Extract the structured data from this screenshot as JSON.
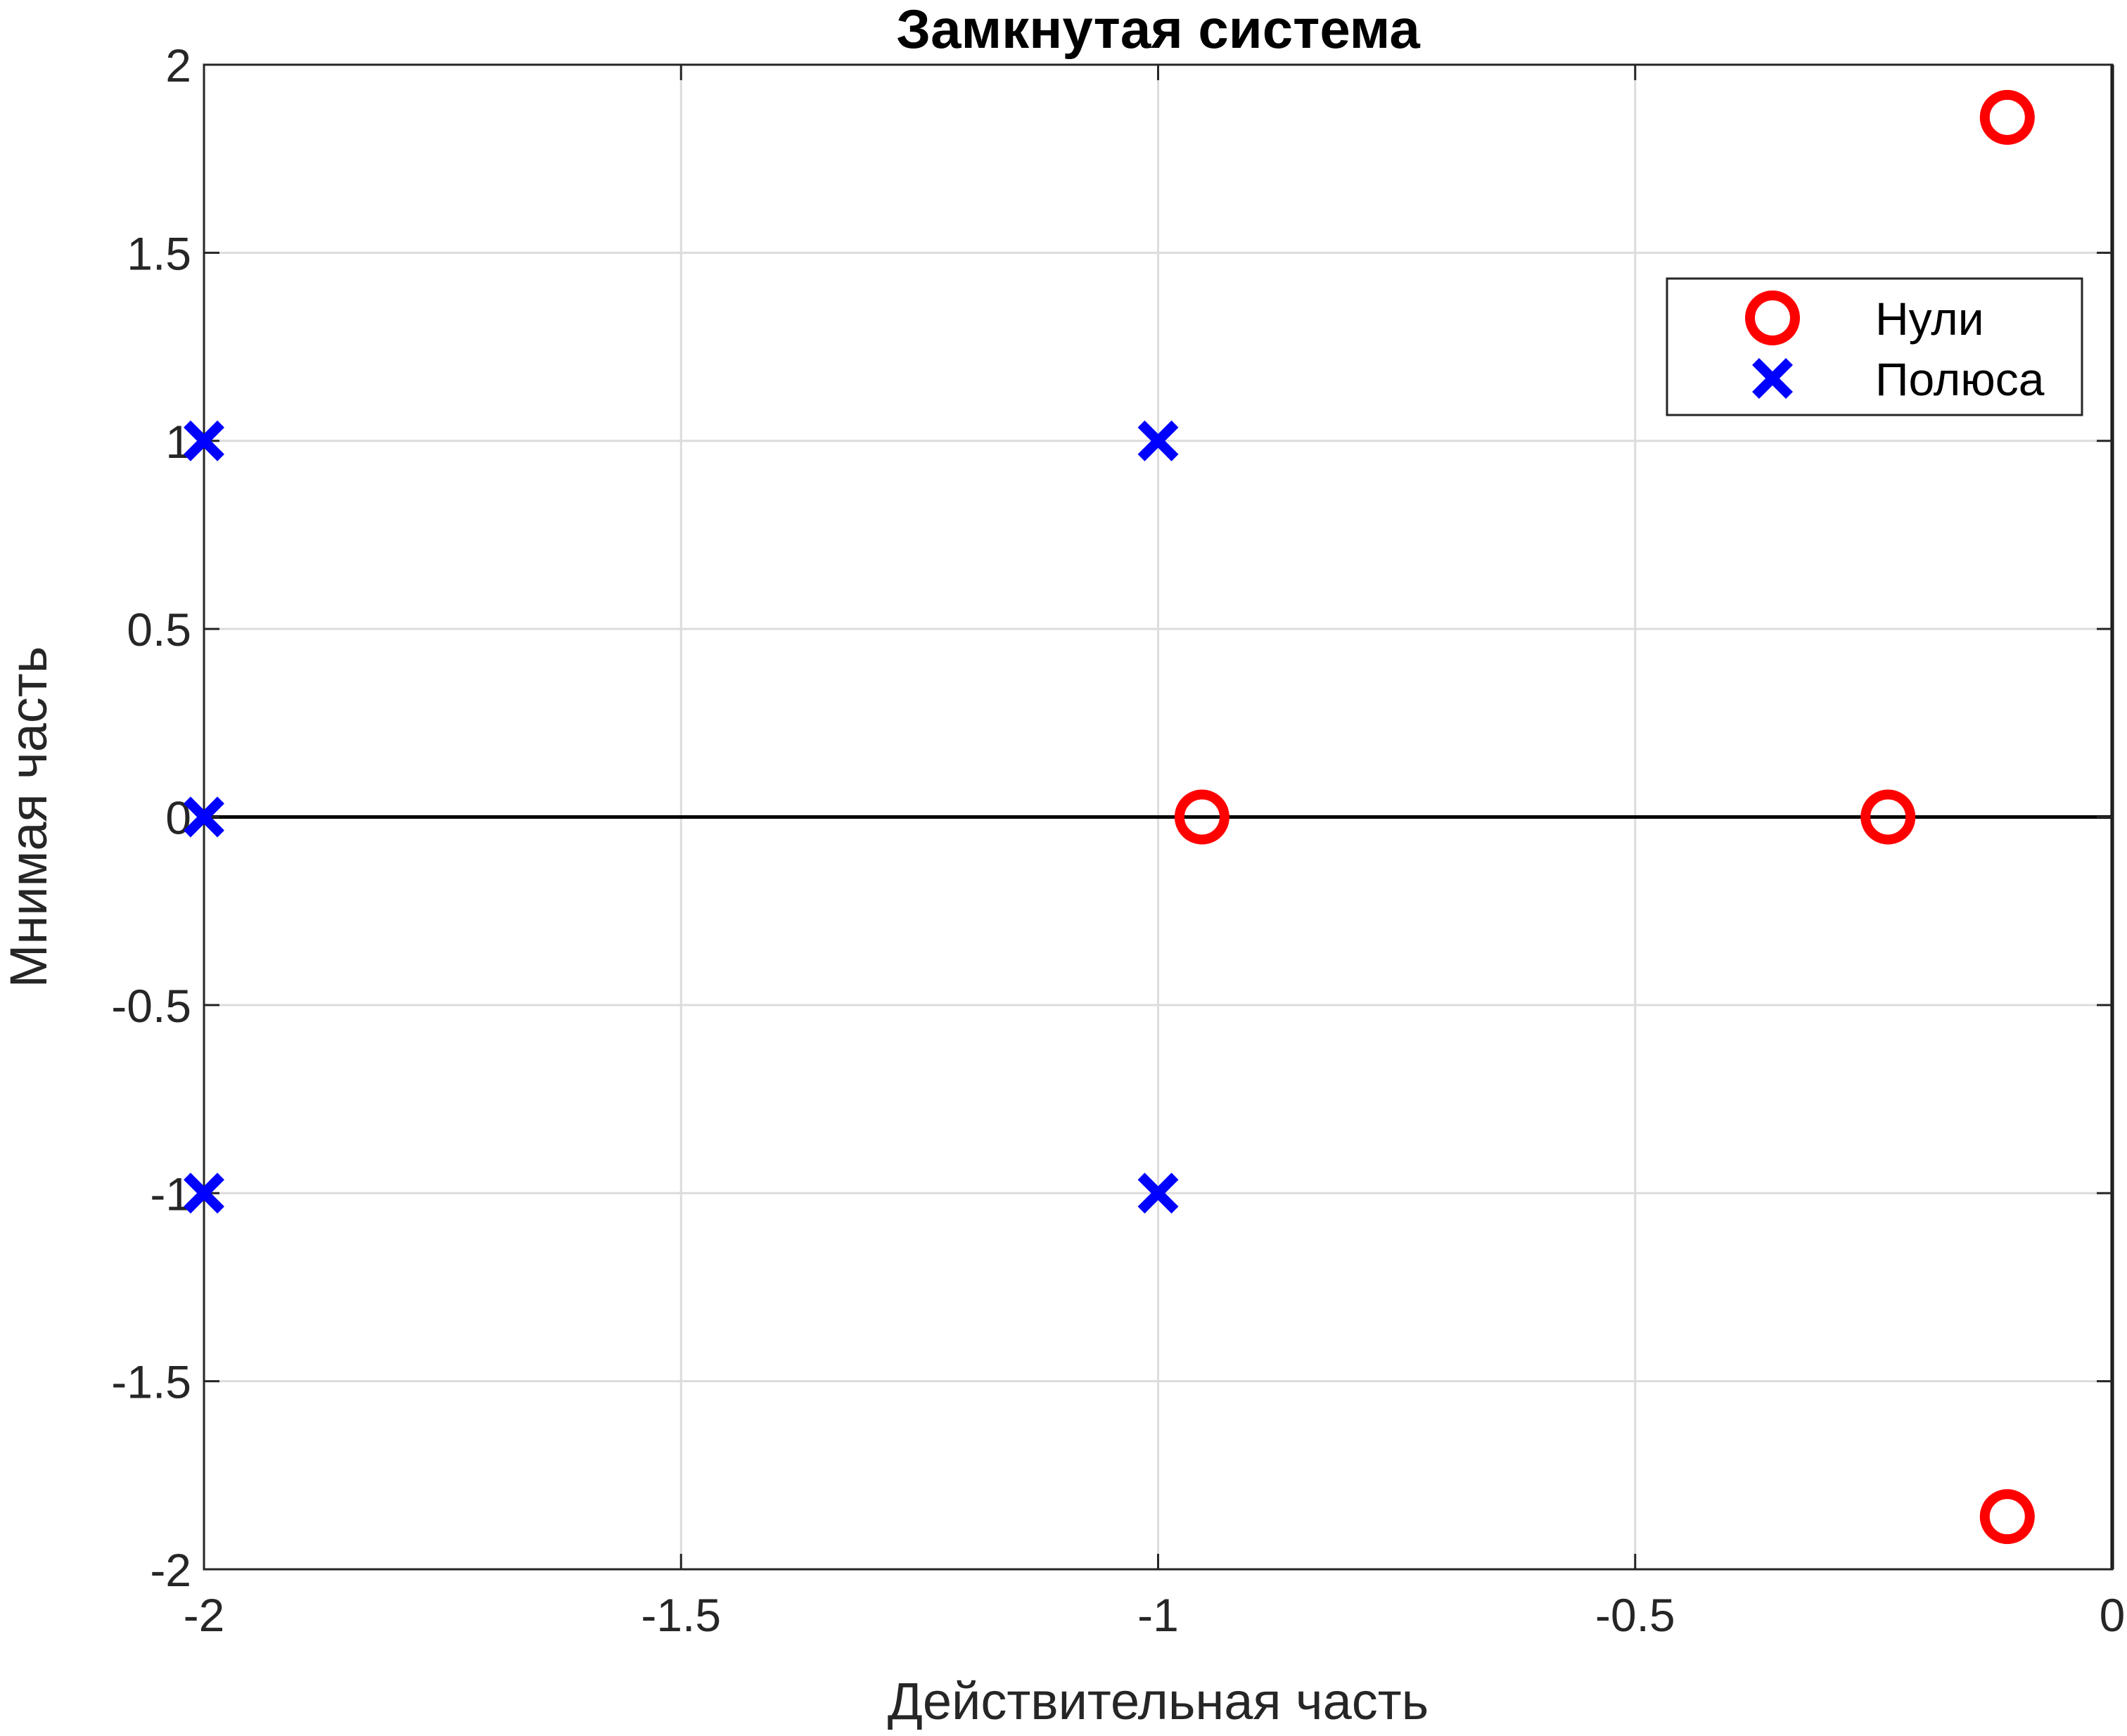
{
  "chart_data": {
    "type": "scatter",
    "title": "Замкнутая система",
    "xlabel": "Действительная часть",
    "ylabel": "Мнимая часть",
    "xlim": [
      -2,
      0
    ],
    "ylim": [
      -2,
      2
    ],
    "grid": true,
    "legend_position": "top-right",
    "x_ticks": [
      "-2",
      "-1.5",
      "-1",
      "-0.5",
      "0"
    ],
    "x_tick_values": [
      -2,
      -1.5,
      -1,
      -0.5,
      0
    ],
    "y_ticks": [
      "-2",
      "-1.5",
      "-1",
      "-0.5",
      "0",
      "0.5",
      "1",
      "1.5",
      "2"
    ],
    "y_tick_values": [
      -2,
      -1.5,
      -1,
      -0.5,
      0,
      0.5,
      1,
      1.5,
      2
    ],
    "series": [
      {
        "name": "Нули",
        "marker": "circle",
        "color": "#ff0000",
        "points": [
          {
            "x": -0.11,
            "y": 1.86
          },
          {
            "x": -0.954,
            "y": 0
          },
          {
            "x": -0.235,
            "y": 0
          },
          {
            "x": -0.11,
            "y": -1.86
          }
        ]
      },
      {
        "name": "Полюса",
        "marker": "x",
        "color": "#0000ff",
        "points": [
          {
            "x": -2,
            "y": 1
          },
          {
            "x": -1,
            "y": 1
          },
          {
            "x": -2,
            "y": 0
          },
          {
            "x": -2,
            "y": -1
          },
          {
            "x": -1,
            "y": -1
          }
        ]
      }
    ]
  }
}
